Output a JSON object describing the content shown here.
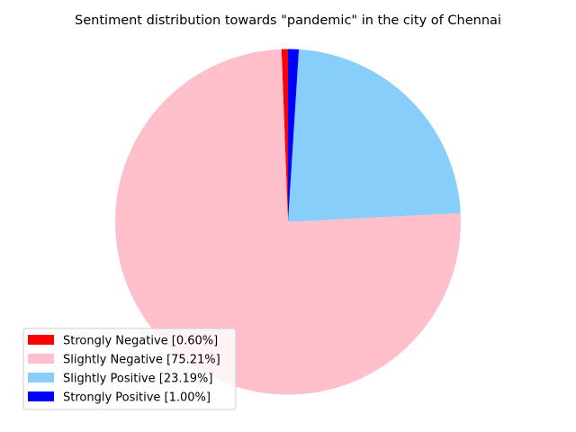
{
  "chart_data": {
    "type": "pie",
    "title": "Sentiment distribution towards \"pandemic\" in the city of Chennai",
    "legend_position": "lower-left",
    "slices": [
      {
        "label": "Strongly Negative [0.60%]",
        "value": 0.6,
        "color": "#ff0000"
      },
      {
        "label": "Slightly Negative [75.21%]",
        "value": 75.21,
        "color": "#ffc0cb"
      },
      {
        "label": "Slightly Positive [23.19%]",
        "value": 23.19,
        "color": "#87cefa"
      },
      {
        "label": "Strongly Positive [1.00%]",
        "value": 1.0,
        "color": "#0000ff"
      }
    ]
  }
}
